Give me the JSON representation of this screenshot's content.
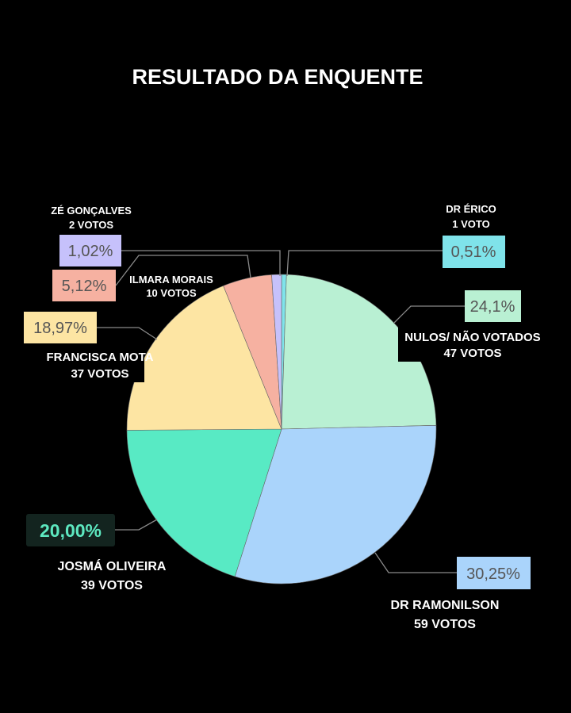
{
  "chart_data": {
    "type": "pie",
    "title": "RESULTADO DA ENQUENTE",
    "start": "top",
    "direction": "clockwise",
    "slices": [
      {
        "name": "DR ÉRICO",
        "votes_label": "1 VOTO",
        "votes": 1,
        "percent": 0.51,
        "percent_label": "0,51%",
        "color": "#7fe3ea"
      },
      {
        "name": "NULOS/ NÃO VOTADOS",
        "votes_label": "47 VOTOS",
        "votes": 47,
        "percent": 24.1,
        "percent_label": "24,1%",
        "color": "#b9f0d3"
      },
      {
        "name": "DR RAMONILSON",
        "votes_label": "59 VOTOS",
        "votes": 59,
        "percent": 30.25,
        "percent_label": "30,25%",
        "color": "#aad4fb"
      },
      {
        "name": "JOSMÁ OLIVEIRA",
        "votes_label": "39 VOTOS",
        "votes": 39,
        "percent": 20.0,
        "percent_label": "20,00%",
        "color": "#58eac4"
      },
      {
        "name": "FRANCISCA MOTA",
        "votes_label": "37 VOTOS",
        "votes": 37,
        "percent": 18.97,
        "percent_label": "18,97%",
        "color": "#fde5a3"
      },
      {
        "name": "ILMARA MORAIS",
        "votes_label": "10 VOTOS",
        "votes": 10,
        "percent": 5.12,
        "percent_label": "5,12%",
        "color": "#f6b1a1"
      },
      {
        "name": "ZÉ GONÇALVES",
        "votes_label": "2 VOTOS",
        "votes": 2,
        "percent": 1.02,
        "percent_label": "1,02%",
        "color": "#c6c1fb"
      }
    ]
  }
}
